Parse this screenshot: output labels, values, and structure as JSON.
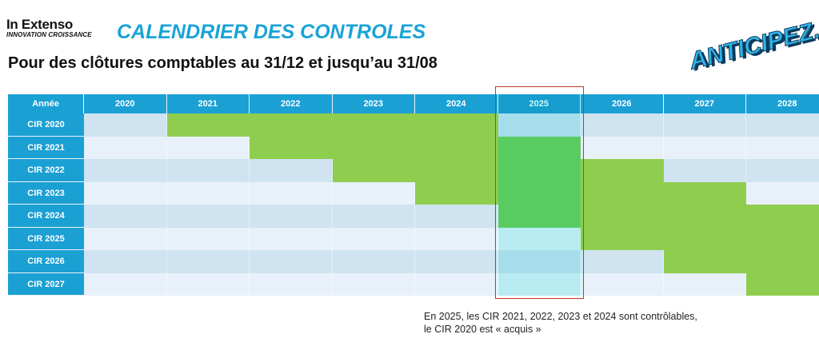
{
  "header": {
    "logo_name": "In Extenso",
    "logo_tagline": "INNOVATION CROISSANCE",
    "title": "CALENDRIER DES CONTROLES",
    "subtitle": "Pour des clôtures comptables au 31/12 et jusqu’au 31/08",
    "brand": "ANTICIPEZ."
  },
  "table": {
    "corner_label": "Année",
    "years": [
      "2020",
      "2021",
      "2022",
      "2023",
      "2024",
      "2025",
      "2026",
      "2027",
      "2028"
    ],
    "highlight_year": "2025",
    "rows": [
      {
        "label": "CIR 2020",
        "controllable_years": [
          "2021",
          "2022",
          "2023",
          "2024"
        ]
      },
      {
        "label": "CIR 2021",
        "controllable_years": [
          "2022",
          "2023",
          "2024",
          "2025"
        ]
      },
      {
        "label": "CIR 2022",
        "controllable_years": [
          "2023",
          "2024",
          "2025",
          "2026"
        ]
      },
      {
        "label": "CIR 2023",
        "controllable_years": [
          "2024",
          "2025",
          "2026",
          "2027"
        ]
      },
      {
        "label": "CIR 2024",
        "controllable_years": [
          "2025",
          "2026",
          "2027",
          "2028"
        ]
      },
      {
        "label": "CIR 2025",
        "controllable_years": [
          "2026",
          "2027",
          "2028"
        ]
      },
      {
        "label": "CIR 2026",
        "controllable_years": [
          "2027",
          "2028"
        ]
      },
      {
        "label": "CIR 2027",
        "controllable_years": [
          "2028"
        ]
      }
    ]
  },
  "note": {
    "line1": "En 2025, les CIR 2021, 2022, 2023 et 2024 sont contrôlables,",
    "line2": "le CIR 2020 est « acquis »"
  },
  "colors": {
    "header_blue": "#1ba0d4",
    "title_blue": "#1aa3d6",
    "green": "#8fcd4f",
    "highlight_green": "#6fd064",
    "highlight_cyan": "#a8ecec",
    "box_red": "#c0392b"
  }
}
